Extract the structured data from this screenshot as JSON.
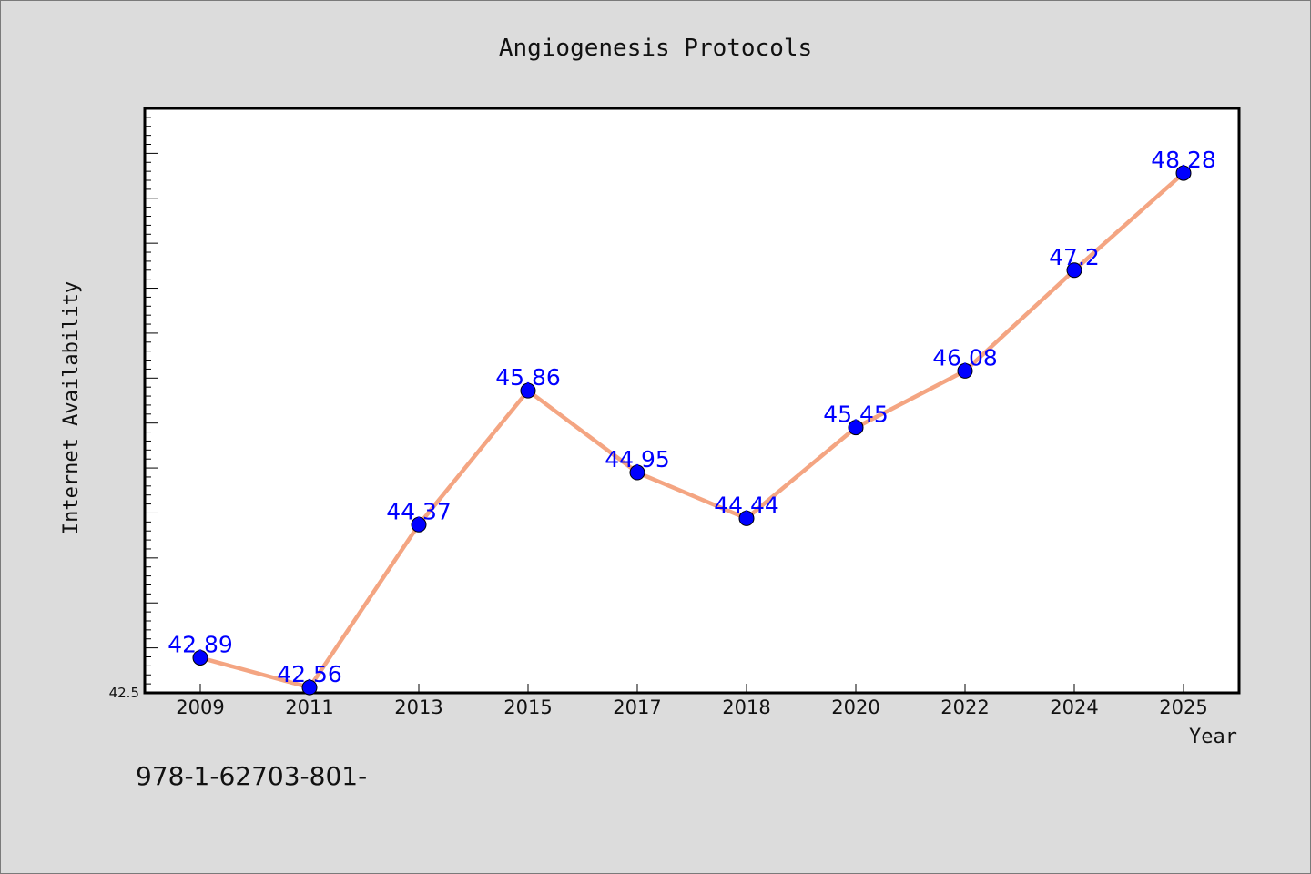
{
  "chart_data": {
    "type": "line",
    "title": "Angiogenesis Protocols",
    "xlabel": "Year",
    "ylabel": "Internet Availability",
    "categories": [
      "2009",
      "2011",
      "2013",
      "2015",
      "2017",
      "2018",
      "2020",
      "2022",
      "2024",
      "2025"
    ],
    "series": [
      {
        "values": [
          42.89,
          42.56,
          44.37,
          45.86,
          44.95,
          44.44,
          45.45,
          46.08,
          47.2,
          48.28
        ],
        "labels": [
          "42.89",
          "42.56",
          "44.37",
          "45.86",
          "44.95",
          "44.44",
          "45.45",
          "46.08",
          "47.2",
          "48.28"
        ],
        "line_color": "#f4a582",
        "marker_color": "#0000ff"
      }
    ],
    "ylim": [
      42.5,
      49.0
    ],
    "yticks_labeled": [
      "42.5"
    ],
    "grid": false,
    "legend": "none"
  },
  "footnote": "978-1-62703-801-"
}
